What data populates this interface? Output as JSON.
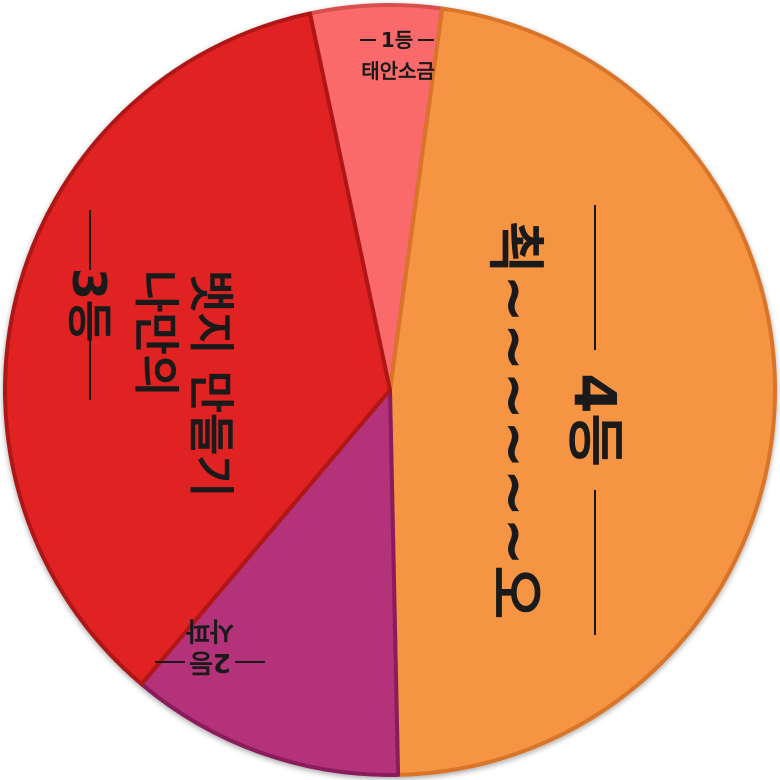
{
  "chart_data": {
    "type": "pie",
    "title": "",
    "slices": [
      {
        "rank": "1등",
        "name": "태안소금",
        "value": 5.5,
        "color": "#fb6b6b",
        "edge": "#d84f4f"
      },
      {
        "rank": "4등",
        "name": "쵝~~~~~~오",
        "value": 47.5,
        "color": "#f59442",
        "edge": "#d8742a"
      },
      {
        "rank": "2등",
        "name": "사파",
        "value": 11.5,
        "color": "#b3307a",
        "edge": "#8a1e5c"
      },
      {
        "rank": "3등",
        "name": "나만의 뱃지 만들기",
        "value": 35.5,
        "color": "#e02424",
        "edge": "#b01616"
      }
    ]
  }
}
